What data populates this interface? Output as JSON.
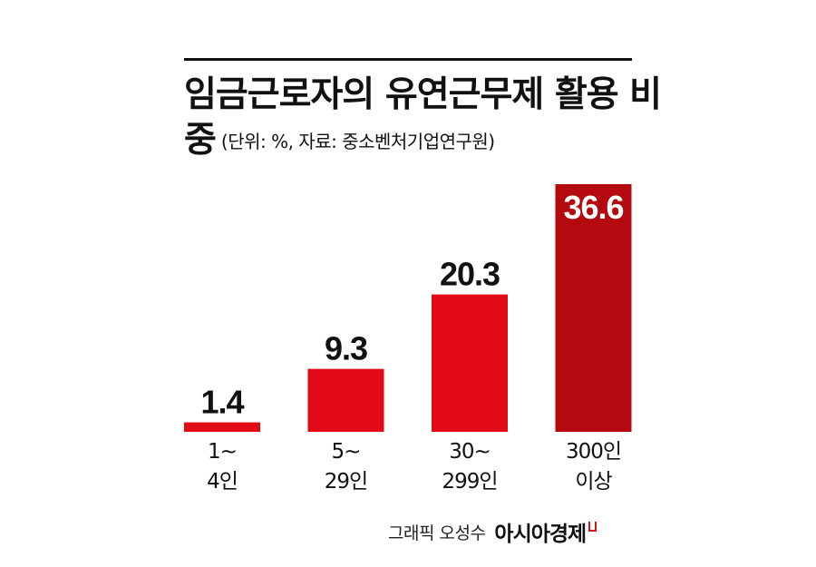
{
  "header": {
    "title": "임금근로자의 유연근무제 활용 비중",
    "subtitle": "(단위: %, 자료: 중소벤처기업연구원)"
  },
  "credit": {
    "byline": "그래픽 오성수",
    "publisher": "아시아경제"
  },
  "colors": {
    "bar": "#e20a17",
    "highlight_bar": "#b40a0f"
  },
  "chart_data": {
    "type": "bar",
    "title": "임금근로자의 유연근무제 활용 비중",
    "subtitle": "(단위: %, 자료: 중소벤처기업연구원)",
    "unit": "%",
    "categories": [
      [
        "1~",
        "4인"
      ],
      [
        "5~",
        "29인"
      ],
      [
        "30~",
        "299인"
      ],
      [
        "300인",
        "이상"
      ]
    ],
    "values": [
      1.4,
      9.3,
      20.3,
      36.6
    ],
    "value_labels": [
      "1.4",
      "9.3",
      "20.3",
      "36.6"
    ],
    "highlight_index": 3,
    "ylim": [
      0,
      36.6
    ],
    "xlabel": "",
    "ylabel": "",
    "grid": false,
    "legend": "none"
  }
}
